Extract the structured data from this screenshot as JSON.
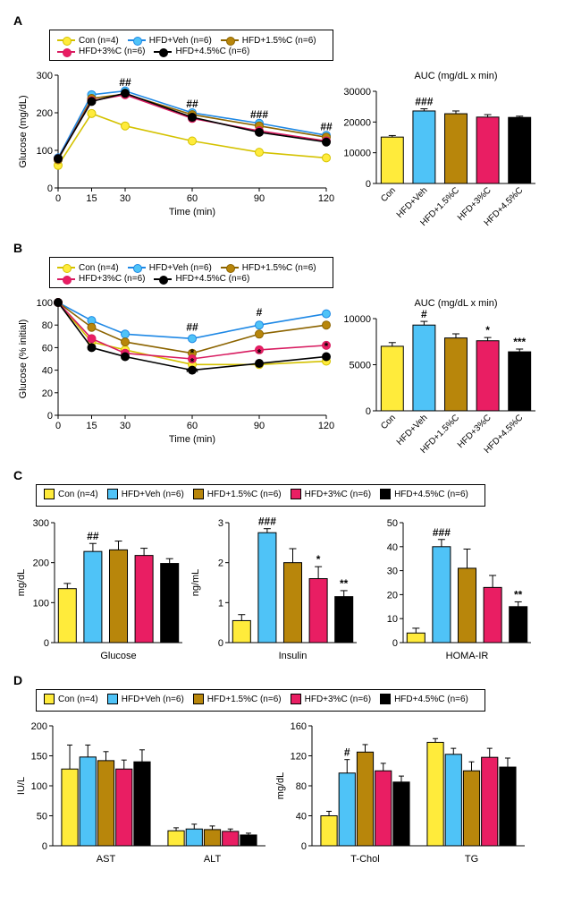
{
  "groups": [
    {
      "id": "con",
      "label": "Con (n=4)",
      "color": "#ffeb3b",
      "line": "#d4c200"
    },
    {
      "id": "veh",
      "label": "HFD+Veh (n=6)",
      "color": "#4fc3f7",
      "line": "#1e88e5"
    },
    {
      "id": "c15",
      "label": "HFD+1.5%C (n=6)",
      "color": "#b8860b",
      "line": "#8c6400"
    },
    {
      "id": "c30",
      "label": "HFD+3%C (n=6)",
      "color": "#e91e63",
      "line": "#d81b60"
    },
    {
      "id": "c45",
      "label": "HFD+4.5%C (n=6)",
      "color": "#000000",
      "line": "#000000"
    }
  ],
  "bar_categories": [
    "Con",
    "HFD+Veh",
    "HFD+1.5%C",
    "HFD+3%C",
    "HFD+4.5%C"
  ],
  "A": {
    "label": "A",
    "line": {
      "xlabel": "Time (min)",
      "ylabel": "Glucose (mg/dL)",
      "x": [
        0,
        15,
        30,
        60,
        90,
        120
      ],
      "ylim": [
        0,
        300
      ],
      "yticks": [
        0,
        100,
        200,
        300
      ],
      "series": {
        "con": [
          60,
          198,
          165,
          125,
          95,
          80
        ],
        "veh": [
          80,
          248,
          258,
          200,
          172,
          140
        ],
        "c15": [
          75,
          238,
          250,
          195,
          165,
          135
        ],
        "c30": [
          78,
          232,
          248,
          185,
          152,
          125
        ],
        "c45": [
          78,
          230,
          252,
          188,
          148,
          122
        ]
      },
      "sig": [
        {
          "x": 30,
          "y": 272,
          "t": "##"
        },
        {
          "x": 60,
          "y": 214,
          "t": "##"
        },
        {
          "x": 90,
          "y": 186,
          "t": "###"
        },
        {
          "x": 120,
          "y": 154,
          "t": "##"
        }
      ]
    },
    "bar": {
      "title": "AUC (mg/dL x min)",
      "ylim": [
        0,
        30000
      ],
      "yticks": [
        0,
        10000,
        20000,
        30000
      ],
      "values": [
        15100,
        23600,
        22700,
        21600,
        21500
      ],
      "errors": [
        500,
        700,
        900,
        800,
        400
      ],
      "sig": [
        {
          "i": 1,
          "t": "###",
          "dy": -4
        }
      ]
    }
  },
  "B": {
    "label": "B",
    "line": {
      "xlabel": "Time (min)",
      "ylabel": "Glucose (% initial)",
      "x": [
        0,
        15,
        30,
        60,
        90,
        120
      ],
      "ylim": [
        0,
        100
      ],
      "yticks": [
        0,
        20,
        40,
        60,
        80,
        100
      ],
      "series": {
        "con": [
          100,
          65,
          58,
          45,
          45,
          48
        ],
        "veh": [
          100,
          84,
          72,
          68,
          80,
          90
        ],
        "c15": [
          100,
          78,
          65,
          55,
          72,
          80
        ],
        "c30": [
          100,
          68,
          55,
          50,
          58,
          62
        ],
        "c45": [
          100,
          60,
          52,
          40,
          46,
          52
        ]
      },
      "sig": [
        {
          "x": 60,
          "y": 75,
          "t": "##"
        },
        {
          "x": 90,
          "y": 88,
          "t": "#"
        },
        {
          "x": 60,
          "y": 52,
          "t": "*"
        },
        {
          "x": 60,
          "y": 44,
          "t": "*"
        },
        {
          "x": 60,
          "y": 35,
          "t": "***"
        },
        {
          "x": 90,
          "y": 52,
          "t": "*"
        },
        {
          "x": 90,
          "y": 42,
          "t": "*"
        },
        {
          "x": 120,
          "y": 58,
          "t": "*"
        }
      ]
    },
    "bar": {
      "title": "AUC (mg/dL x min)",
      "ylim": [
        0,
        10000
      ],
      "yticks": [
        0,
        5000,
        10000
      ],
      "values": [
        7000,
        9300,
        7900,
        7600,
        6400
      ],
      "errors": [
        400,
        400,
        450,
        350,
        300
      ],
      "sig": [
        {
          "i": 1,
          "t": "#",
          "dy": -4
        },
        {
          "i": 3,
          "t": "*",
          "dy": -4
        },
        {
          "i": 4,
          "t": "***",
          "dy": -4
        }
      ]
    }
  },
  "C": {
    "label": "C",
    "groups": [
      {
        "name": "Glucose",
        "ylabel": "mg/dL",
        "ylim": [
          0,
          300
        ],
        "yticks": [
          0,
          100,
          200,
          300
        ],
        "values": [
          135,
          228,
          232,
          218,
          198
        ],
        "errors": [
          13,
          20,
          22,
          18,
          12
        ],
        "sig": [
          {
            "i": 1,
            "t": "##",
            "dy": -4
          }
        ]
      },
      {
        "name": "Insulin",
        "ylabel": "ng/mL",
        "ylim": [
          0,
          3
        ],
        "yticks": [
          0,
          1,
          2,
          3
        ],
        "values": [
          0.55,
          2.75,
          2.0,
          1.6,
          1.15
        ],
        "errors": [
          0.15,
          0.1,
          0.35,
          0.3,
          0.15
        ],
        "sig": [
          {
            "i": 1,
            "t": "###",
            "dy": -4
          },
          {
            "i": 3,
            "t": "*",
            "dy": -4
          },
          {
            "i": 4,
            "t": "**",
            "dy": -4
          }
        ]
      },
      {
        "name": "HOMA-IR",
        "ylabel": "",
        "ylim": [
          0,
          50
        ],
        "yticks": [
          0,
          10,
          20,
          30,
          40,
          50
        ],
        "values": [
          4,
          40,
          31,
          23,
          15
        ],
        "errors": [
          2,
          3,
          8,
          5,
          2
        ],
        "sig": [
          {
            "i": 1,
            "t": "###",
            "dy": -4
          },
          {
            "i": 4,
            "t": "**",
            "dy": -4
          }
        ]
      }
    ]
  },
  "D": {
    "label": "D",
    "left": {
      "ylabel": "IU/L",
      "ylim": [
        0,
        200
      ],
      "yticks": [
        0,
        50,
        100,
        150,
        200
      ],
      "groups": [
        "AST",
        "ALT"
      ],
      "values": {
        "AST": [
          128,
          148,
          142,
          128,
          140
        ],
        "ALT": [
          25,
          28,
          27,
          24,
          18
        ]
      },
      "errors": {
        "AST": [
          40,
          20,
          15,
          15,
          20
        ],
        "ALT": [
          5,
          8,
          6,
          4,
          3
        ]
      },
      "sig": []
    },
    "right": {
      "ylabel": "mg/dL",
      "ylim": [
        0,
        160
      ],
      "yticks": [
        0,
        40,
        80,
        120,
        160
      ],
      "groups": [
        "T-Chol",
        "TG"
      ],
      "values": {
        "T-Chol": [
          40,
          97,
          125,
          100,
          85
        ],
        "TG": [
          138,
          122,
          100,
          118,
          105
        ]
      },
      "errors": {
        "T-Chol": [
          6,
          18,
          10,
          10,
          8
        ],
        "TG": [
          5,
          8,
          12,
          12,
          12
        ]
      },
      "sig": [
        {
          "g": "T-Chol",
          "i": 1,
          "t": "#",
          "dy": -4
        }
      ]
    }
  },
  "style": {
    "axis_color": "#000",
    "grid": false,
    "font_size": 11,
    "bg": "#fff",
    "line_width": 1.6,
    "marker_size": 4.5,
    "bar_border": "#000",
    "bar_width": 0.7
  }
}
